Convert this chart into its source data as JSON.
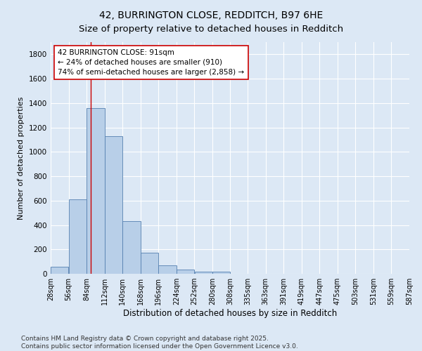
{
  "title": "42, BURRINGTON CLOSE, REDDITCH, B97 6HE",
  "subtitle": "Size of property relative to detached houses in Redditch",
  "xlabel": "Distribution of detached houses by size in Redditch",
  "ylabel": "Number of detached properties",
  "bar_values": [
    60,
    610,
    1360,
    1130,
    430,
    170,
    70,
    35,
    20,
    15,
    0,
    0,
    0,
    0,
    0,
    0,
    0,
    0,
    0,
    0
  ],
  "bin_edges": [
    28,
    56,
    84,
    112,
    140,
    168,
    196,
    224,
    252,
    280,
    308,
    335,
    363,
    391,
    419,
    447,
    475,
    503,
    531,
    559,
    587
  ],
  "tick_labels": [
    "28sqm",
    "56sqm",
    "84sqm",
    "112sqm",
    "140sqm",
    "168sqm",
    "196sqm",
    "224sqm",
    "252sqm",
    "280sqm",
    "308sqm",
    "335sqm",
    "363sqm",
    "391sqm",
    "419sqm",
    "447sqm",
    "475sqm",
    "503sqm",
    "531sqm",
    "559sqm",
    "587sqm"
  ],
  "bar_color": "#b8cfe8",
  "bar_edge_color": "#5580b0",
  "background_color": "#dce8f5",
  "grid_color": "#ffffff",
  "vline_x": 91,
  "vline_color": "#cc0000",
  "annotation_text": "42 BURRINGTON CLOSE: 91sqm\n← 24% of detached houses are smaller (910)\n74% of semi-detached houses are larger (2,858) →",
  "annotation_box_color": "#ffffff",
  "annotation_box_edge": "#cc0000",
  "ylim": [
    0,
    1900
  ],
  "yticks": [
    0,
    200,
    400,
    600,
    800,
    1000,
    1200,
    1400,
    1600,
    1800
  ],
  "footer_text": "Contains HM Land Registry data © Crown copyright and database right 2025.\nContains public sector information licensed under the Open Government Licence v3.0.",
  "title_fontsize": 10,
  "subtitle_fontsize": 9.5,
  "xlabel_fontsize": 8.5,
  "ylabel_fontsize": 8,
  "tick_fontsize": 7,
  "annotation_fontsize": 7.5,
  "footer_fontsize": 6.5
}
